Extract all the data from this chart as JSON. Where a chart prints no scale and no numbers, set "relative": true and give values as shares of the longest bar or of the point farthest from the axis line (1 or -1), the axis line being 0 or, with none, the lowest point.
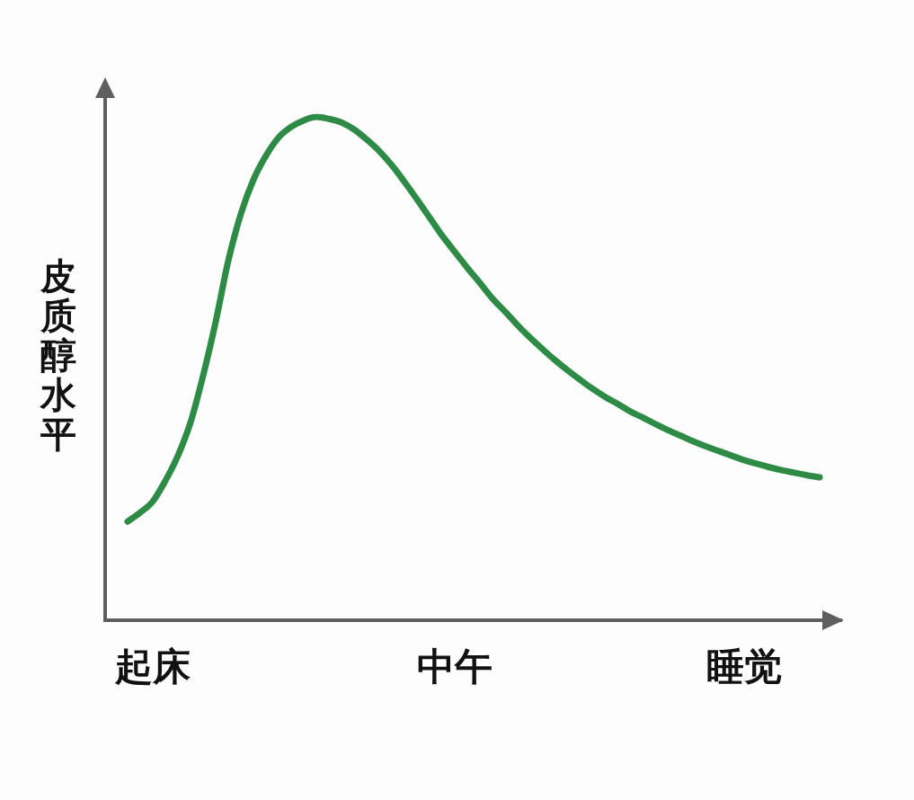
{
  "chart_data": {
    "type": "line",
    "relative": true,
    "ylabel": "皮质醇水平",
    "categories": [
      null,
      null,
      "起床",
      null,
      null,
      null,
      null,
      null,
      null,
      null,
      null,
      null,
      null,
      null,
      null,
      null,
      null,
      null,
      null,
      null,
      null,
      null,
      null,
      null,
      null,
      null,
      "中午",
      null,
      null,
      null,
      null,
      null,
      null,
      null,
      null,
      null,
      null,
      null,
      null,
      null,
      null,
      null,
      null,
      null,
      null,
      null,
      null,
      null,
      null,
      "睡觉",
      null,
      null,
      null,
      null,
      null,
      null
    ],
    "series": [
      {
        "color": "#2e8b45",
        "values": [
          0.196,
          0.214,
          0.236,
          0.277,
          0.327,
          0.393,
          0.486,
          0.593,
          0.714,
          0.807,
          0.875,
          0.923,
          0.959,
          0.98,
          0.993,
          1,
          0.996,
          0.989,
          0.975,
          0.955,
          0.932,
          0.904,
          0.871,
          0.836,
          0.8,
          0.764,
          0.732,
          0.7,
          0.67,
          0.639,
          0.613,
          0.586,
          0.561,
          0.538,
          0.516,
          0.496,
          0.477,
          0.459,
          0.443,
          0.429,
          0.414,
          0.402,
          0.389,
          0.377,
          0.366,
          0.355,
          0.345,
          0.336,
          0.327,
          0.318,
          0.311,
          0.304,
          0.298,
          0.293,
          0.288,
          0.284
        ]
      }
    ],
    "tick_labels": "x",
    "grid": false,
    "legend": false,
    "line_style": "solid"
  }
}
